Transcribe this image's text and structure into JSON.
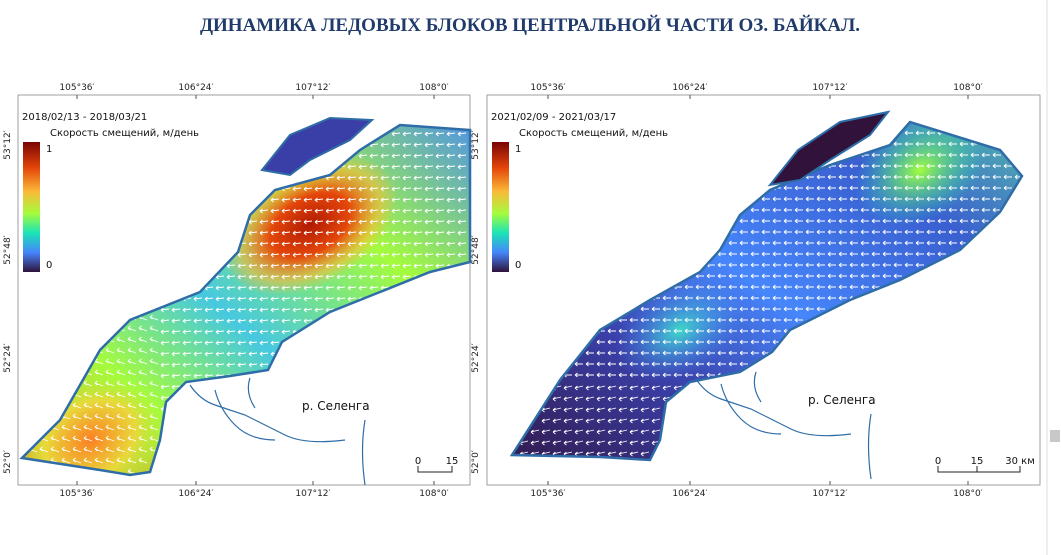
{
  "title": "ДИНАМИКА ЛЕДОВЫХ БЛОКОВ ЦЕНТРАЛЬНОЙ ЧАСТИ ОЗ. БАЙКАЛ.",
  "panels": [
    {
      "date_range": "2018/02/13 - 2018/03/21",
      "legend_title": "Скорость смещений, м/день",
      "legend_max": 1,
      "legend_min": 0,
      "top_ticks": [
        "105°36′",
        "106°24′",
        "107°12′",
        "108°0′"
      ],
      "bottom_ticks": [
        "105°36′",
        "106°24′",
        "107°12′",
        "108°0′"
      ],
      "left_ticks": [
        "53°12′",
        "52°48′",
        "52°24′",
        "52°0′"
      ],
      "river_label": "р. Селенга",
      "scale_labels": [
        "0",
        "15"
      ]
    },
    {
      "date_range": "2021/02/09 - 2021/03/17",
      "legend_title": "Скорость смещений, м/день",
      "legend_max": 1,
      "legend_min": 0,
      "top_ticks": [
        "105°36′",
        "106°24′",
        "107°12′",
        "108°0′"
      ],
      "bottom_ticks": [
        "105°36′",
        "106°24′",
        "107°12′",
        "108°0′"
      ],
      "left_ticks": [
        "53°12′",
        "52°48′",
        "52°24′",
        "52°0′"
      ],
      "river_label": "р. Селенга",
      "scale_labels": [
        "0",
        "15",
        "30 км"
      ]
    }
  ]
}
